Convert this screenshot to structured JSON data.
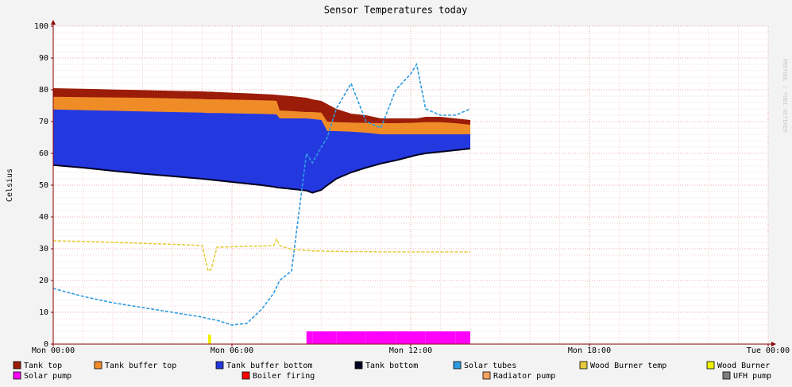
{
  "chart_data": {
    "type": "rrd",
    "title": "Sensor Temperatures today",
    "y_label": "Celsius",
    "watermark": "RRDTOOL / TOBI OETIKER",
    "xlim": [
      0,
      24
    ],
    "xticks": [
      {
        "value": 0,
        "label": "Mon 00:00"
      },
      {
        "value": 6,
        "label": "Mon 06:00"
      },
      {
        "value": 12,
        "label": "Mon 12:00"
      },
      {
        "value": 18,
        "label": "Mon 18:00"
      },
      {
        "value": 24,
        "label": "Tue 00:00"
      }
    ],
    "ylim": [
      0,
      100
    ],
    "yticks": [
      0,
      10,
      20,
      30,
      40,
      50,
      60,
      70,
      80,
      90,
      100
    ],
    "grid": true,
    "x": [
      0,
      1,
      2,
      3,
      4,
      5,
      5.2,
      5.3,
      5.5,
      6,
      6.5,
      7,
      7.4,
      7.5,
      7.6,
      8,
      8.5,
      8.7,
      9,
      9.2,
      9.5,
      10,
      10.5,
      11,
      11.5,
      12,
      12.2,
      12.5,
      13,
      13.5,
      14
    ],
    "series": [
      {
        "name": "Tank top",
        "color": "#9b1c08",
        "style": "band",
        "values": [
          80.5,
          80.3,
          80.1,
          79.9,
          79.7,
          79.5,
          79.4,
          79.4,
          79.3,
          79.1,
          78.9,
          78.7,
          78.5,
          78.4,
          78.3,
          78,
          77.5,
          77,
          76.5,
          75.5,
          74,
          72.5,
          72,
          71,
          71,
          71,
          71,
          71.5,
          71.5,
          71,
          70.5
        ]
      },
      {
        "name": "Tank buffer top",
        "color": "#f08c28",
        "style": "band",
        "values": [
          77.8,
          77.7,
          77.6,
          77.5,
          77.3,
          77.1,
          77,
          77,
          77,
          76.9,
          76.8,
          76.7,
          76.6,
          76.5,
          73.5,
          73.3,
          73,
          73,
          72.8,
          70,
          69.8,
          69.7,
          69.6,
          69.5,
          69.5,
          69.6,
          69.7,
          69.8,
          69.8,
          69.5,
          69
        ]
      },
      {
        "name": "Tank buffer bottom",
        "color": "#2438e0",
        "style": "band",
        "values": [
          73.8,
          73.6,
          73.4,
          73.2,
          73,
          72.8,
          72.7,
          72.7,
          72.7,
          72.6,
          72.5,
          72.4,
          72.3,
          72.2,
          71,
          71,
          71,
          70.8,
          70.5,
          67,
          67,
          66.8,
          66.5,
          66,
          66,
          66,
          66,
          66,
          66,
          66,
          66
        ]
      },
      {
        "name": "Tank bottom",
        "color": "#000020",
        "style": "line",
        "values": [
          56.3,
          55.5,
          54.5,
          53.6,
          52.8,
          52,
          51.8,
          51.7,
          51.5,
          51,
          50.5,
          50,
          49.5,
          49.3,
          49.2,
          48.8,
          48.3,
          47.6,
          48.5,
          50,
          52,
          54,
          55.5,
          56.8,
          57.8,
          59,
          59.5,
          60,
          60.5,
          61,
          61.5
        ]
      },
      {
        "name": "Solar tubes",
        "color": "#2e9be0",
        "style": "dashed",
        "values": [
          17.5,
          15,
          13,
          11.5,
          10,
          8.5,
          8,
          7.8,
          7.5,
          6,
          6.5,
          11,
          16,
          18,
          20,
          23,
          60,
          57,
          62,
          65,
          74,
          82,
          70,
          68,
          80,
          85,
          88,
          74,
          72,
          72,
          74
        ]
      },
      {
        "name": "Wood Burner temp",
        "color": "#e6cc3c",
        "style": "dashed",
        "values": [
          32.5,
          32.3,
          32,
          31.7,
          31.4,
          31,
          23,
          23.5,
          30.5,
          30.6,
          30.8,
          30.8,
          31,
          33,
          31,
          29.8,
          29.5,
          29.3,
          29.3,
          29.2,
          29.2,
          29.1,
          29.1,
          29,
          29,
          29,
          29,
          29,
          29,
          29,
          29
        ]
      },
      {
        "name": "Wood Burner",
        "color": "#f0f000",
        "style": "step",
        "values": [
          0,
          0,
          0,
          0,
          0,
          0,
          3,
          0,
          0,
          0,
          0,
          0,
          0,
          0,
          0,
          0,
          0,
          0,
          0,
          0,
          0,
          0,
          0,
          0,
          0,
          0,
          0,
          0,
          0,
          0,
          0
        ]
      },
      {
        "name": "Solar pump",
        "color": "#ff00ff",
        "style": "step",
        "values": [
          0,
          0,
          0,
          0,
          0,
          0,
          0,
          0,
          0,
          0,
          0,
          0,
          0,
          0,
          0,
          0,
          4,
          4,
          4,
          4,
          4,
          4,
          4,
          4,
          4,
          4,
          4,
          4,
          4,
          4,
          4
        ]
      },
      {
        "name": "Boiler firing",
        "color": "#ff0000",
        "style": "step",
        "values": [
          0,
          0,
          0,
          0,
          0,
          0,
          0,
          0,
          0,
          0,
          0,
          0,
          0,
          0,
          0,
          0,
          0,
          0,
          0,
          0,
          0,
          0,
          0,
          0,
          0,
          0,
          0,
          0,
          0,
          0,
          0
        ]
      },
      {
        "name": "Radiator pump",
        "color": "#f4a460",
        "style": "step",
        "values": [
          0,
          0,
          0,
          0,
          0,
          0,
          0,
          0,
          0,
          0,
          0,
          0,
          0,
          0,
          0,
          0,
          0,
          0,
          0,
          0,
          0,
          0,
          0,
          0,
          0,
          0,
          0,
          0,
          0,
          0,
          0
        ]
      },
      {
        "name": "UFH pump",
        "color": "#808080",
        "style": "step",
        "values": [
          0,
          0,
          0,
          0,
          0,
          0,
          0,
          0,
          0,
          0,
          0,
          0,
          0,
          0,
          0,
          0,
          0,
          0,
          0,
          0,
          0,
          0,
          0,
          0,
          0,
          0,
          0,
          0,
          0,
          0,
          0
        ]
      }
    ]
  }
}
